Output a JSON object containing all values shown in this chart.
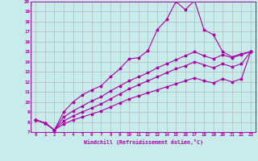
{
  "background_color": "#c8ecec",
  "grid_color": "#b0b0b0",
  "line_color": "#aa00aa",
  "xlabel": "Windchill (Refroidissement éolien,°C)",
  "xlabel_color": "#aa00aa",
  "xlim": [
    -0.5,
    23.5
  ],
  "ylim": [
    7,
    20
  ],
  "xticks": [
    0,
    1,
    2,
    3,
    4,
    5,
    6,
    7,
    8,
    9,
    10,
    11,
    12,
    13,
    14,
    15,
    16,
    17,
    18,
    19,
    20,
    21,
    22,
    23
  ],
  "yticks": [
    7,
    8,
    9,
    10,
    11,
    12,
    13,
    14,
    15,
    16,
    17,
    18,
    19,
    20
  ],
  "line1_y": [
    8.2,
    7.9,
    7.2,
    9.0,
    10.0,
    10.7,
    11.2,
    11.6,
    12.5,
    13.3,
    14.3,
    14.4,
    15.1,
    17.2,
    18.2,
    20.0,
    19.2,
    20.1,
    17.2,
    16.7,
    15.0,
    14.5,
    14.8,
    15.0
  ],
  "line2_y": [
    8.2,
    7.9,
    7.2,
    8.5,
    9.1,
    9.6,
    10.1,
    10.5,
    11.1,
    11.6,
    12.1,
    12.5,
    12.9,
    13.4,
    13.8,
    14.2,
    14.6,
    15.0,
    14.6,
    14.3,
    14.7,
    14.4,
    14.7,
    15.0
  ],
  "line3_y": [
    8.2,
    7.9,
    7.2,
    8.1,
    8.6,
    9.0,
    9.4,
    9.8,
    10.3,
    10.8,
    11.3,
    11.7,
    12.1,
    12.5,
    12.9,
    13.3,
    13.6,
    14.0,
    13.7,
    13.4,
    13.8,
    13.5,
    13.8,
    15.0
  ],
  "line4_y": [
    8.2,
    7.9,
    7.2,
    7.8,
    8.2,
    8.5,
    8.8,
    9.1,
    9.5,
    9.9,
    10.3,
    10.6,
    10.9,
    11.2,
    11.5,
    11.8,
    12.1,
    12.4,
    12.1,
    11.9,
    12.3,
    12.0,
    12.3,
    15.0
  ]
}
